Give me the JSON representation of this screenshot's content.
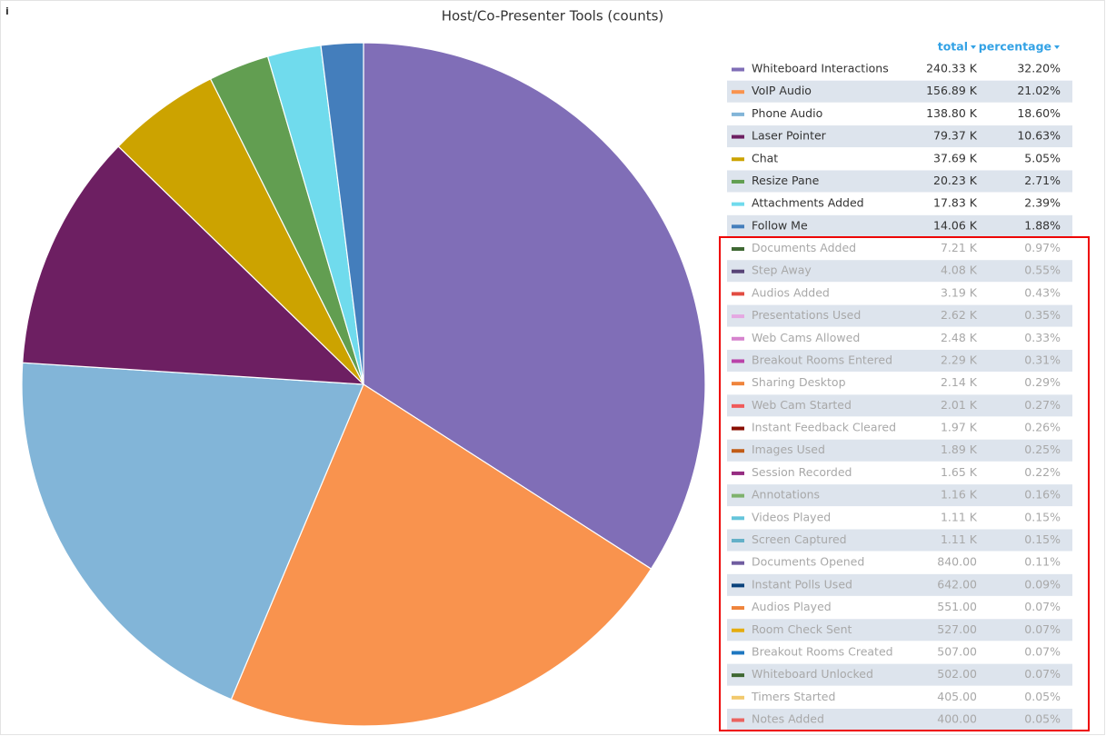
{
  "chart_data": {
    "type": "pie",
    "title": "Host/Co-Presenter Tools (counts)",
    "legend_columns": [
      "total",
      "percentage"
    ],
    "categories": [
      "Whiteboard Interactions",
      "VoIP Audio",
      "Phone Audio",
      "Laser Pointer",
      "Chat",
      "Resize Pane",
      "Attachments Added",
      "Follow Me",
      "Documents Added",
      "Step Away",
      "Audios Added",
      "Presentations Used",
      "Web Cams Allowed",
      "Breakout Rooms Entered",
      "Sharing Desktop",
      "Web Cam Started",
      "Instant Feedback Cleared",
      "Images Used",
      "Session Recorded",
      "Annotations",
      "Videos Played",
      "Screen Captured",
      "Documents Opened",
      "Instant Polls Used",
      "Audios Played",
      "Room Check Sent",
      "Breakout Rooms Created",
      "Whiteboard Unlocked",
      "Timers Started",
      "Notes Added"
    ],
    "values": [
      240330,
      156890,
      138800,
      79370,
      37690,
      20230,
      17830,
      14060,
      7210,
      4080,
      3190,
      2620,
      2480,
      2290,
      2140,
      2010,
      1970,
      1890,
      1650,
      1160,
      1110,
      1110,
      840,
      642,
      551,
      527,
      507,
      502,
      405,
      400
    ],
    "value_labels": [
      "240.33 K",
      "156.89 K",
      "138.80 K",
      "79.37 K",
      "37.69 K",
      "20.23 K",
      "17.83 K",
      "14.06 K",
      "7.21 K",
      "4.08 K",
      "3.19 K",
      "2.62 K",
      "2.48 K",
      "2.29 K",
      "2.14 K",
      "2.01 K",
      "1.97 K",
      "1.89 K",
      "1.65 K",
      "1.16 K",
      "1.11 K",
      "1.11 K",
      "840.00",
      "642.00",
      "551.00",
      "527.00",
      "507.00",
      "502.00",
      "405.00",
      "400.00"
    ],
    "percentages": [
      32.2,
      21.02,
      18.6,
      10.63,
      5.05,
      2.71,
      2.39,
      1.88,
      0.97,
      0.55,
      0.43,
      0.35,
      0.33,
      0.31,
      0.29,
      0.27,
      0.26,
      0.25,
      0.22,
      0.16,
      0.15,
      0.15,
      0.11,
      0.09,
      0.07,
      0.07,
      0.07,
      0.07,
      0.05,
      0.05
    ],
    "percentage_labels": [
      "32.20%",
      "21.02%",
      "18.60%",
      "10.63%",
      "5.05%",
      "2.71%",
      "2.39%",
      "1.88%",
      "0.97%",
      "0.55%",
      "0.43%",
      "0.35%",
      "0.33%",
      "0.31%",
      "0.29%",
      "0.27%",
      "0.26%",
      "0.25%",
      "0.22%",
      "0.16%",
      "0.15%",
      "0.15%",
      "0.11%",
      "0.09%",
      "0.07%",
      "0.07%",
      "0.07%",
      "0.07%",
      "0.05%",
      "0.05%"
    ],
    "colors": [
      "#806eb7",
      "#f9934e",
      "#82b5d8",
      "#6d1f62",
      "#cca300",
      "#629e51",
      "#70dbed",
      "#447ebc",
      "#3f6833",
      "#584477",
      "#e24d42",
      "#e5a8e2",
      "#d683ce",
      "#ba43a9",
      "#ef843c",
      "#f05a5a",
      "#890f02",
      "#c15c17",
      "#962d82",
      "#7eb26d",
      "#65c5db",
      "#64b0c8",
      "#705da0",
      "#0a437c",
      "#ef843c",
      "#e5ac0e",
      "#1f78c1",
      "#3f6833",
      "#f2c96d",
      "#ea6460"
    ],
    "hidden": [
      false,
      false,
      false,
      false,
      false,
      false,
      false,
      false,
      true,
      true,
      true,
      true,
      true,
      true,
      true,
      true,
      true,
      true,
      true,
      true,
      true,
      true,
      true,
      true,
      true,
      true,
      true,
      true,
      true,
      true
    ]
  }
}
